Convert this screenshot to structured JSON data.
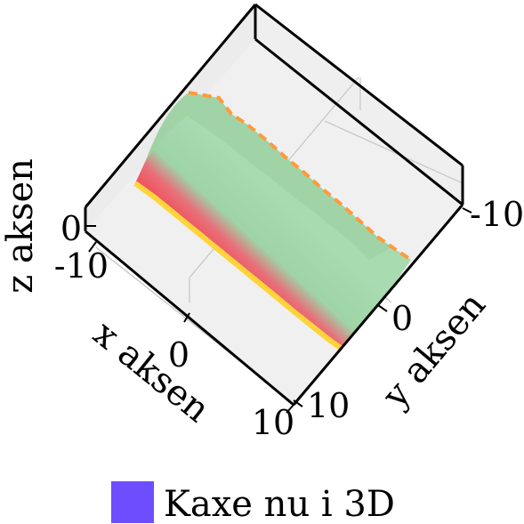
{
  "chart_data": {
    "type": "surface3d",
    "title": "",
    "xlabel": "x aksen",
    "ylabel": "y aksen",
    "zlabel": "z aksen",
    "x_ticks": [
      "-10",
      "0",
      "10"
    ],
    "y_ticks": [
      "-10",
      "0",
      "10"
    ],
    "z_ticks": [
      "0"
    ],
    "xlim": [
      -10,
      10
    ],
    "ylim": [
      -10,
      10
    ],
    "grid": true,
    "legend": {
      "position": "bottom",
      "entries": [
        {
          "label": "Kaxe nu i 3D",
          "color": "#6e4dff"
        }
      ]
    },
    "colormap": [
      "#ffe03a",
      "#ffb347",
      "#8f9cff",
      "#f0505a",
      "#9fd4a6"
    ],
    "description": "ridge surface along y, periodic bumps"
  }
}
